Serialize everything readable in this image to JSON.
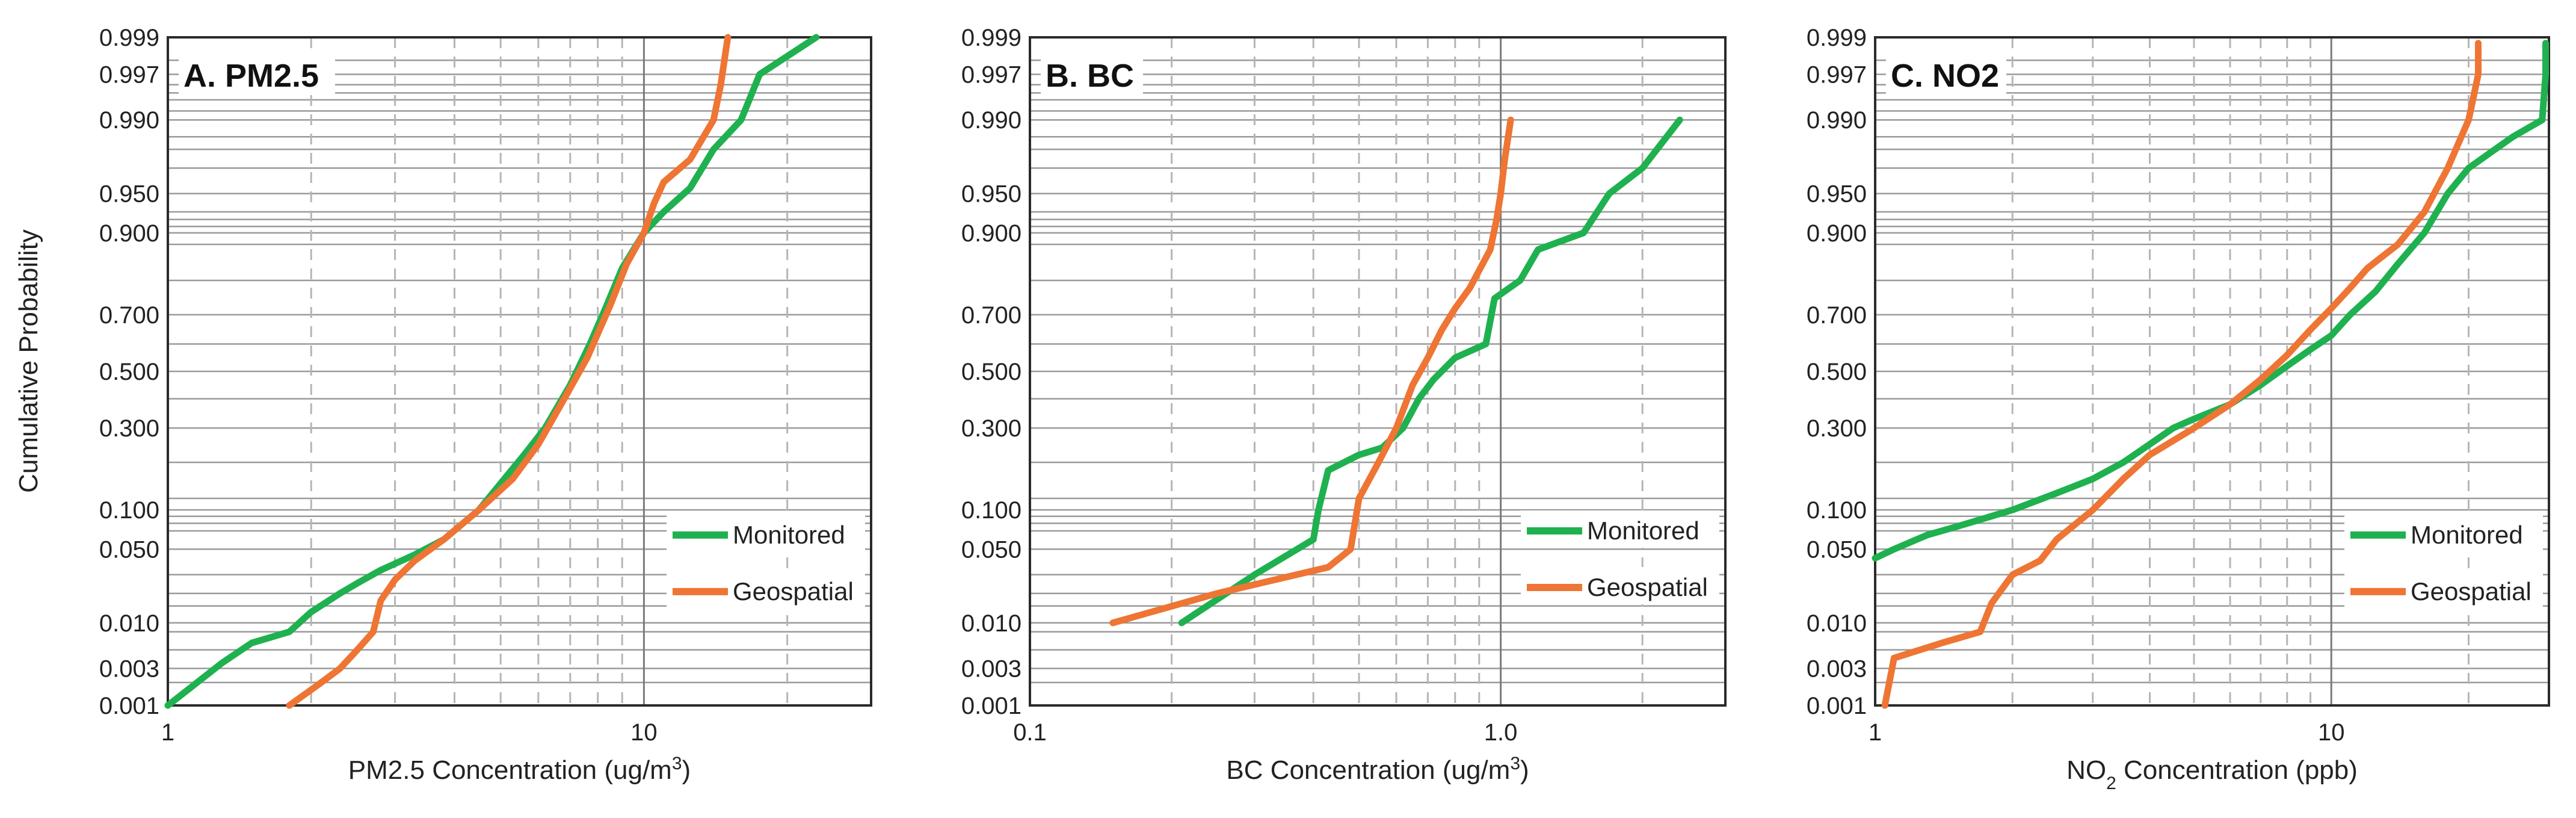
{
  "figure": {
    "ylabel": "Cumulative Probability",
    "colors": {
      "Monitored": "#1fb14f",
      "Geospatial": "#ee7534"
    }
  },
  "chart_data": [
    {
      "type": "line",
      "panel_label": "A. PM2.5",
      "xlabel": "PM2.5 Concentration (ug/m",
      "xlabel_sup": "3",
      "xlabel_after": ")",
      "ylabel": "Cumulative Probability",
      "x_scale": "log",
      "y_scale": "normal-probability",
      "xlim": [
        1,
        30
      ],
      "ylim": [
        0.001,
        0.999
      ],
      "x_ticks": [
        1,
        10
      ],
      "x_tick_labels": [
        "1",
        "10"
      ],
      "y_ticks": [
        0.001,
        0.003,
        0.01,
        0.05,
        0.1,
        0.3,
        0.5,
        0.7,
        0.9,
        0.95,
        0.99,
        0.997,
        0.999
      ],
      "y_tick_labels": [
        "0.001",
        "0.003",
        "0.010",
        "0.050",
        "0.100",
        "0.300",
        "0.500",
        "0.700",
        "0.900",
        "0.950",
        "0.990",
        "0.997",
        "0.999"
      ],
      "legend": [
        "Monitored",
        "Geospatial"
      ],
      "legend_position": "bottom-right",
      "series": [
        {
          "name": "Monitored",
          "points": [
            [
              1.0,
              0.001
            ],
            [
              1.3,
              0.0035
            ],
            [
              1.5,
              0.006
            ],
            [
              1.8,
              0.008
            ],
            [
              2.0,
              0.013
            ],
            [
              2.3,
              0.02
            ],
            [
              2.5,
              0.025
            ],
            [
              2.8,
              0.033
            ],
            [
              3.3,
              0.045
            ],
            [
              3.8,
              0.06
            ],
            [
              4.5,
              0.1
            ],
            [
              5.0,
              0.15
            ],
            [
              5.6,
              0.22
            ],
            [
              6.2,
              0.3
            ],
            [
              7.0,
              0.45
            ],
            [
              7.7,
              0.6
            ],
            [
              8.3,
              0.72
            ],
            [
              9.0,
              0.83
            ],
            [
              10.0,
              0.9
            ],
            [
              11.0,
              0.93
            ],
            [
              12.5,
              0.955
            ],
            [
              14.0,
              0.98
            ],
            [
              16.0,
              0.99
            ],
            [
              17.5,
              0.997
            ],
            [
              23.0,
              0.999
            ]
          ]
        },
        {
          "name": "Geospatial",
          "points": [
            [
              1.8,
              0.001
            ],
            [
              2.1,
              0.002
            ],
            [
              2.3,
              0.003
            ],
            [
              2.5,
              0.005
            ],
            [
              2.7,
              0.008
            ],
            [
              2.8,
              0.017
            ],
            [
              3.0,
              0.027
            ],
            [
              3.3,
              0.04
            ],
            [
              3.8,
              0.06
            ],
            [
              4.5,
              0.1
            ],
            [
              5.3,
              0.16
            ],
            [
              6.0,
              0.25
            ],
            [
              6.8,
              0.4
            ],
            [
              7.6,
              0.55
            ],
            [
              8.5,
              0.73
            ],
            [
              9.2,
              0.84
            ],
            [
              10.0,
              0.9
            ],
            [
              10.5,
              0.94
            ],
            [
              11.0,
              0.96
            ],
            [
              12.5,
              0.975
            ],
            [
              14.0,
              0.99
            ],
            [
              14.5,
              0.996
            ],
            [
              15.0,
              0.999
            ]
          ]
        }
      ]
    },
    {
      "type": "line",
      "panel_label": "B. BC",
      "xlabel": "BC Concentration (ug/m",
      "xlabel_sup": "3",
      "xlabel_after": ")",
      "x_scale": "log",
      "y_scale": "normal-probability",
      "xlim": [
        0.1,
        3
      ],
      "ylim": [
        0.001,
        0.999
      ],
      "x_ticks": [
        0.1,
        1
      ],
      "x_tick_labels": [
        "0.1",
        "1.0"
      ],
      "y_ticks": [
        0.001,
        0.003,
        0.01,
        0.05,
        0.1,
        0.3,
        0.5,
        0.7,
        0.9,
        0.95,
        0.99,
        0.997,
        0.999
      ],
      "y_tick_labels": [
        "0.001",
        "0.003",
        "0.010",
        "0.050",
        "0.100",
        "0.300",
        "0.500",
        "0.700",
        "0.900",
        "0.950",
        "0.990",
        "0.997",
        "0.999"
      ],
      "legend": [
        "Monitored",
        "Geospatial"
      ],
      "legend_position": "right",
      "series": [
        {
          "name": "Monitored",
          "points": [
            [
              0.21,
              0.01
            ],
            [
              0.3,
              0.03
            ],
            [
              0.4,
              0.06
            ],
            [
              0.41,
              0.1
            ],
            [
              0.43,
              0.18
            ],
            [
              0.5,
              0.22
            ],
            [
              0.56,
              0.24
            ],
            [
              0.62,
              0.3
            ],
            [
              0.67,
              0.4
            ],
            [
              0.72,
              0.47
            ],
            [
              0.8,
              0.55
            ],
            [
              0.93,
              0.6
            ],
            [
              0.97,
              0.75
            ],
            [
              1.1,
              0.8
            ],
            [
              1.2,
              0.87
            ],
            [
              1.5,
              0.9
            ],
            [
              1.7,
              0.95
            ],
            [
              2.0,
              0.97
            ],
            [
              2.4,
              0.99
            ]
          ]
        },
        {
          "name": "Geospatial",
          "points": [
            [
              0.15,
              0.01
            ],
            [
              0.25,
              0.02
            ],
            [
              0.43,
              0.035
            ],
            [
              0.48,
              0.05
            ],
            [
              0.5,
              0.12
            ],
            [
              0.55,
              0.2
            ],
            [
              0.6,
              0.3
            ],
            [
              0.65,
              0.45
            ],
            [
              0.7,
              0.55
            ],
            [
              0.75,
              0.65
            ],
            [
              0.8,
              0.72
            ],
            [
              0.86,
              0.78
            ],
            [
              0.95,
              0.87
            ],
            [
              0.98,
              0.92
            ],
            [
              1.0,
              0.95
            ],
            [
              1.02,
              0.975
            ],
            [
              1.05,
              0.99
            ]
          ]
        }
      ]
    },
    {
      "type": "line",
      "panel_label": "C. NO2",
      "xlabel": "NO",
      "xlabel_sub": "2",
      "xlabel_after": " Concentration (ppb)",
      "x_scale": "log",
      "y_scale": "normal-probability",
      "xlim": [
        1,
        30
      ],
      "ylim": [
        0.001,
        0.999
      ],
      "x_ticks": [
        1,
        10
      ],
      "x_tick_labels": [
        "1",
        "10"
      ],
      "y_ticks": [
        0.001,
        0.003,
        0.01,
        0.05,
        0.1,
        0.3,
        0.5,
        0.7,
        0.9,
        0.95,
        0.99,
        0.997,
        0.999
      ],
      "y_tick_labels": [
        "0.001",
        "0.003",
        "0.010",
        "0.050",
        "0.100",
        "0.300",
        "0.500",
        "0.700",
        "0.900",
        "0.950",
        "0.990",
        "0.997",
        "0.999"
      ],
      "legend": [
        "Monitored",
        "Geospatial"
      ],
      "legend_position": "bottom-right",
      "series": [
        {
          "name": "Monitored",
          "points": [
            [
              1.0,
              0.042
            ],
            [
              1.1,
              0.05
            ],
            [
              1.3,
              0.065
            ],
            [
              1.5,
              0.075
            ],
            [
              2.0,
              0.1
            ],
            [
              2.5,
              0.13
            ],
            [
              3.0,
              0.16
            ],
            [
              3.5,
              0.2
            ],
            [
              4.0,
              0.25
            ],
            [
              4.5,
              0.3
            ],
            [
              5.0,
              0.33
            ],
            [
              6.0,
              0.38
            ],
            [
              7.0,
              0.45
            ],
            [
              8.0,
              0.52
            ],
            [
              9.0,
              0.58
            ],
            [
              10.0,
              0.63
            ],
            [
              11.0,
              0.7
            ],
            [
              12.5,
              0.77
            ],
            [
              14.0,
              0.84
            ],
            [
              16.0,
              0.9
            ],
            [
              18.0,
              0.95
            ],
            [
              20.0,
              0.97
            ],
            [
              25.0,
              0.985
            ],
            [
              29.0,
              0.99
            ],
            [
              29.5,
              0.997
            ],
            [
              29.5,
              0.9988
            ]
          ]
        },
        {
          "name": "Geospatial",
          "points": [
            [
              1.05,
              0.001
            ],
            [
              1.1,
              0.004
            ],
            [
              1.4,
              0.006
            ],
            [
              1.7,
              0.008
            ],
            [
              1.8,
              0.016
            ],
            [
              2.0,
              0.03
            ],
            [
              2.3,
              0.04
            ],
            [
              2.5,
              0.06
            ],
            [
              3.0,
              0.1
            ],
            [
              3.5,
              0.16
            ],
            [
              4.0,
              0.22
            ],
            [
              5.0,
              0.3
            ],
            [
              6.0,
              0.38
            ],
            [
              7.0,
              0.47
            ],
            [
              8.0,
              0.56
            ],
            [
              9.0,
              0.65
            ],
            [
              10.0,
              0.72
            ],
            [
              11.0,
              0.78
            ],
            [
              12.0,
              0.83
            ],
            [
              14.0,
              0.88
            ],
            [
              16.0,
              0.93
            ],
            [
              18.0,
              0.97
            ],
            [
              20.0,
              0.99
            ],
            [
              21.0,
              0.997
            ],
            [
              21.0,
              0.9988
            ]
          ]
        }
      ]
    }
  ]
}
